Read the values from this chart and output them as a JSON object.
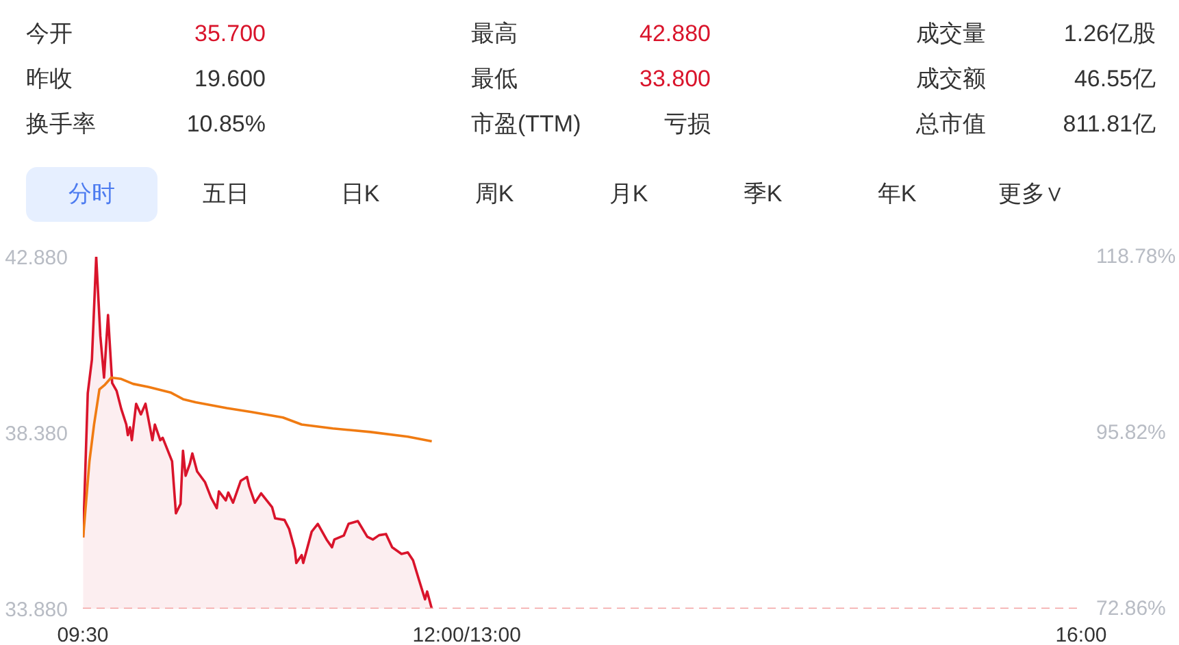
{
  "chart_data": {
    "type": "area",
    "annotations": [
      "今开",
      "35.700",
      "最高",
      "42.880",
      "成交量",
      "1.26亿股",
      "昨收",
      "19.600",
      "最低",
      "33.800",
      "成交额",
      "46.55亿",
      "换手率",
      "10.85%",
      "市盈(TTM)",
      "亏损",
      "总市值",
      "811.81亿",
      "分时",
      "五日",
      "日K",
      "周K",
      "月K",
      "季K",
      "年K",
      "更多∨"
    ],
    "xlim": [
      9.5,
      16
    ],
    "xticks": [
      {
        "value": 9.5,
        "label": "09:30"
      },
      {
        "value": 12,
        "label": "12:00/13:00"
      },
      {
        "value": 16,
        "label": "16:00"
      }
    ],
    "ylim": [
      33.88,
      42.88
    ],
    "yticks": [
      {
        "value": 33.88,
        "label": "33.880"
      },
      {
        "value": 38.38,
        "label": "38.380"
      },
      {
        "value": 42.88,
        "label": "42.880"
      }
    ],
    "y2lim": [
      72.86,
      118.78
    ],
    "y2ticks": [
      {
        "value": 72.86,
        "label": "72.86%"
      },
      {
        "value": 95.82,
        "label": "95.82%"
      },
      {
        "value": 118.78,
        "label": "118.78%"
      }
    ],
    "grid": false,
    "ref_lines": [
      {
        "axis": "y",
        "value": 33.88,
        "color": "#f4a3a3",
        "line_style": "dashed"
      }
    ],
    "series": [
      {
        "color": "#d9142b",
        "x": [
          9.502,
          9.532,
          9.559,
          9.587,
          9.614,
          9.638,
          9.664,
          9.691,
          9.72,
          9.75,
          9.783,
          9.793,
          9.807,
          9.819,
          9.847,
          9.878,
          9.908,
          9.953,
          9.969,
          10.004,
          10.02,
          10.081,
          10.106,
          10.136,
          10.152,
          10.169,
          10.197,
          10.213,
          10.244,
          10.295,
          10.335,
          10.372,
          10.386,
          10.431,
          10.447,
          10.478,
          10.528,
          10.569,
          10.583,
          10.62,
          10.661,
          10.732,
          10.752,
          10.813,
          10.843,
          10.88,
          10.89,
          10.925,
          10.935,
          10.99,
          11.03,
          11.087,
          11.122,
          11.138,
          11.199,
          11.23,
          11.291,
          11.352,
          11.388,
          11.429,
          11.474,
          11.514,
          11.575,
          11.616,
          11.65,
          11.691,
          11.728,
          11.742,
          11.772
        ],
        "values": [
          35.7,
          39.39,
          40.25,
          42.88,
          40.85,
          39.79,
          41.39,
          39.65,
          39.45,
          38.99,
          38.59,
          38.32,
          38.52,
          38.19,
          39.12,
          38.85,
          39.12,
          38.19,
          38.59,
          38.19,
          38.25,
          37.65,
          36.32,
          36.56,
          37.92,
          37.28,
          37.59,
          37.85,
          37.39,
          37.12,
          36.72,
          36.45,
          36.88,
          36.65,
          36.85,
          36.59,
          37.15,
          37.25,
          37.01,
          36.59,
          36.83,
          36.48,
          36.19,
          36.15,
          35.92,
          35.39,
          35.05,
          35.25,
          35.05,
          35.85,
          36.05,
          35.65,
          35.45,
          35.65,
          35.75,
          36.05,
          36.12,
          35.72,
          35.65,
          35.76,
          35.79,
          35.45,
          35.28,
          35.32,
          35.12,
          34.59,
          34.12,
          34.32,
          33.88
        ]
      },
      {
        "type": "line",
        "color": "#f07b12",
        "x": [
          9.502,
          9.543,
          9.573,
          9.608,
          9.644,
          9.685,
          9.746,
          9.827,
          9.929,
          10.071,
          10.152,
          10.234,
          10.437,
          10.599,
          10.803,
          10.925,
          11.128,
          11.372,
          11.616,
          11.772
        ],
        "values": [
          35.7,
          37.65,
          38.59,
          39.49,
          39.61,
          39.79,
          39.76,
          39.63,
          39.55,
          39.41,
          39.24,
          39.16,
          39.01,
          38.91,
          38.77,
          38.59,
          38.49,
          38.4,
          38.28,
          38.16
        ]
      }
    ]
  }
}
